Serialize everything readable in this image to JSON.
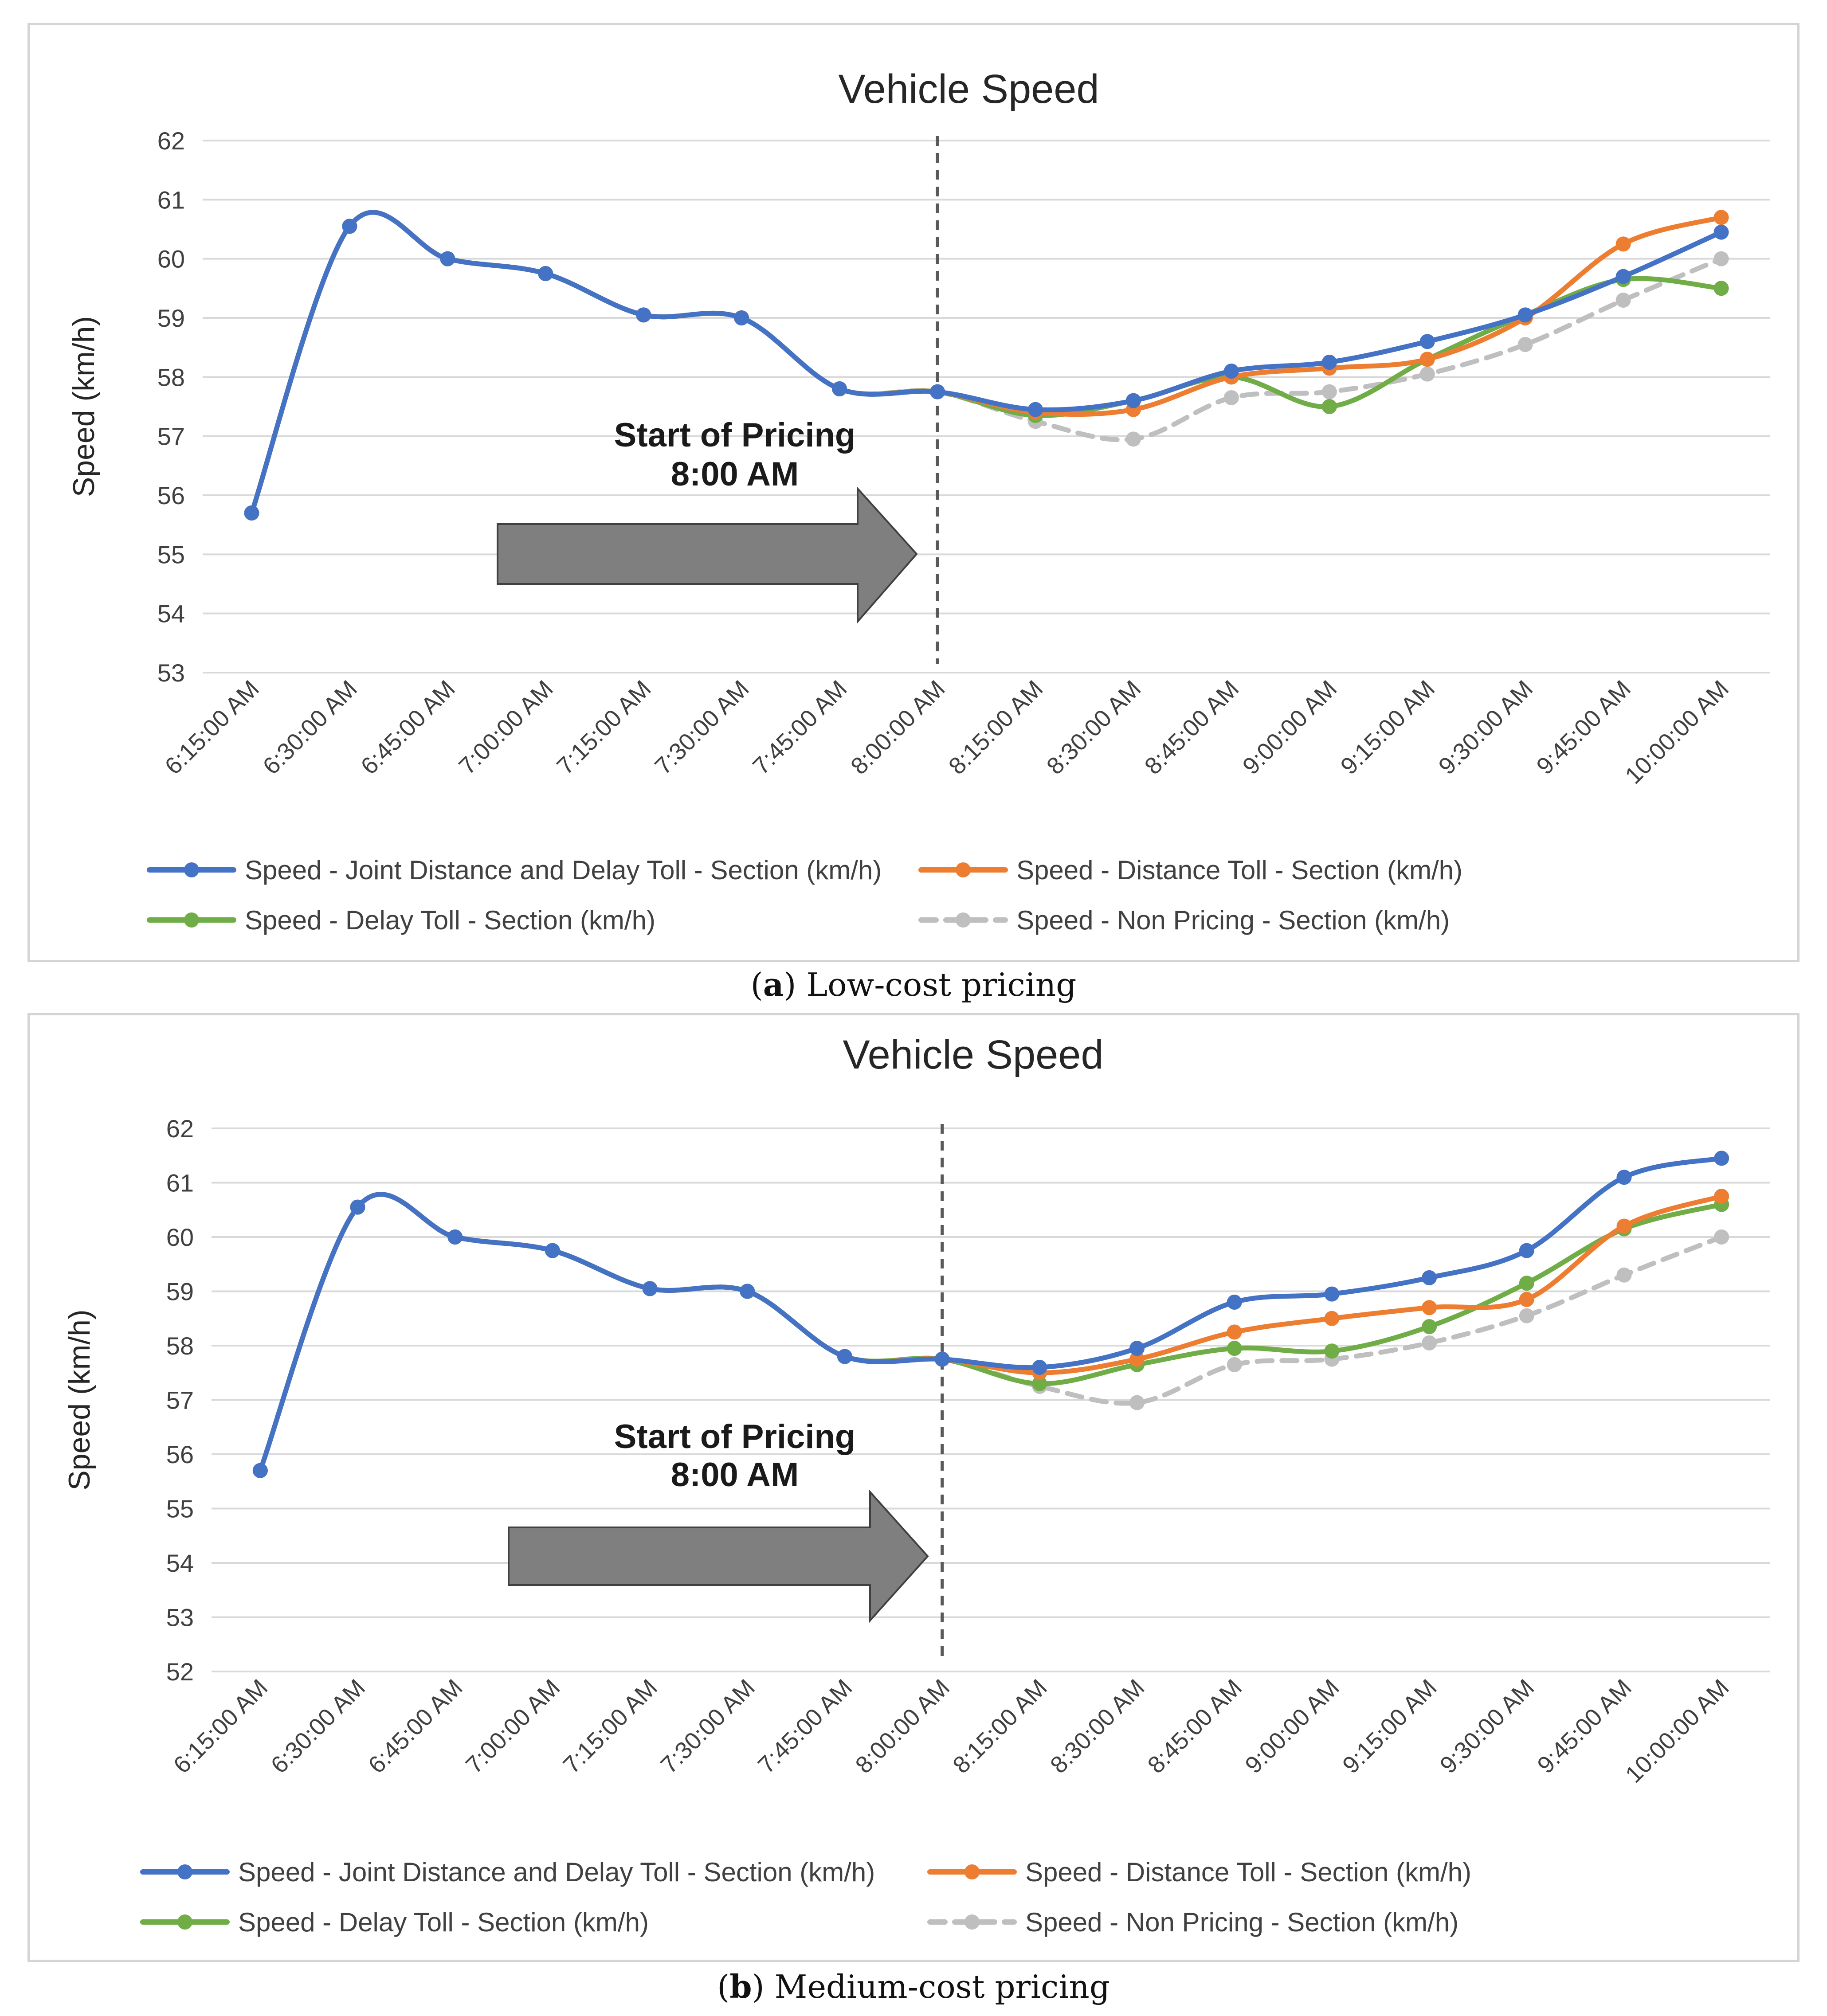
{
  "charts": [
    {
      "id": "a",
      "title": "Vehicle Speed",
      "ylabel": "Speed (km/h)",
      "annotation_line1": "Start of Pricing",
      "annotation_line2": "8:00 AM",
      "caption_letter": "a",
      "caption_text": " Low-cost pricing"
    },
    {
      "id": "b",
      "title": "Vehicle Speed",
      "ylabel": "Speed (km/h)",
      "annotation_line1": "Start of Pricing",
      "annotation_line2": "8:00 AM",
      "caption_letter": "b",
      "caption_text": " Medium-cost pricing"
    }
  ],
  "colors": {
    "joint": "#4472C4",
    "distance": "#ED7D31",
    "delay": "#70AD47",
    "nonpricing": "#BFBFBF",
    "grid": "#d9d9d9",
    "arrow_fill": "#7f7f7f"
  },
  "chart_data": [
    {
      "type": "line",
      "title": "Vehicle Speed",
      "xlabel": "",
      "ylabel": "Speed (km/h)",
      "ylim": [
        53,
        62
      ],
      "yticks": [
        53,
        54,
        55,
        56,
        57,
        58,
        59,
        60,
        61,
        62
      ],
      "grid": true,
      "legend": "bottom",
      "annotation": "Start of Pricing 8:00 AM",
      "vline_at": "8:00:00 AM",
      "categories": [
        "6:15:00 AM",
        "6:30:00 AM",
        "6:45:00 AM",
        "7:00:00 AM",
        "7:15:00 AM",
        "7:30:00 AM",
        "7:45:00 AM",
        "8:00:00 AM",
        "8:15:00 AM",
        "8:30:00 AM",
        "8:45:00 AM",
        "9:00:00 AM",
        "9:15:00 AM",
        "9:30:00 AM",
        "9:45:00 AM",
        "10:00:00 AM"
      ],
      "series": [
        {
          "name": "Speed - Joint Distance and Delay Toll - Section (km/h)",
          "key": "joint",
          "values": [
            55.7,
            60.55,
            60.0,
            59.75,
            59.05,
            59.0,
            57.8,
            57.75,
            57.45,
            57.6,
            58.1,
            58.25,
            58.6,
            59.05,
            59.7,
            60.45
          ]
        },
        {
          "name": "Speed - Distance Toll - Section (km/h)",
          "key": "distance",
          "values": [
            55.7,
            60.55,
            60.0,
            59.75,
            59.05,
            59.0,
            57.8,
            57.75,
            57.4,
            57.45,
            58.0,
            58.15,
            58.3,
            59.0,
            60.25,
            60.7
          ]
        },
        {
          "name": "Speed - Delay Toll - Section (km/h)",
          "key": "delay",
          "values": [
            55.7,
            60.55,
            60.0,
            59.75,
            59.05,
            59.0,
            57.8,
            57.75,
            57.35,
            57.6,
            58.0,
            57.5,
            58.3,
            59.05,
            59.65,
            59.5
          ]
        },
        {
          "name": "Speed - Non Pricing - Section (km/h)",
          "key": "nonpricing",
          "dashed": true,
          "values": [
            55.7,
            60.55,
            60.0,
            59.75,
            59.05,
            59.0,
            57.8,
            57.75,
            57.25,
            56.95,
            57.65,
            57.75,
            58.05,
            58.55,
            59.3,
            60.0
          ]
        }
      ]
    },
    {
      "type": "line",
      "title": "Vehicle Speed",
      "xlabel": "",
      "ylabel": "Speed (km/h)",
      "ylim": [
        52,
        62
      ],
      "yticks": [
        52,
        53,
        54,
        55,
        56,
        57,
        58,
        59,
        60,
        61,
        62
      ],
      "grid": true,
      "legend": "bottom",
      "annotation": "Start of Pricing 8:00 AM",
      "vline_at": "8:00:00 AM",
      "categories": [
        "6:15:00 AM",
        "6:30:00 AM",
        "6:45:00 AM",
        "7:00:00 AM",
        "7:15:00 AM",
        "7:30:00 AM",
        "7:45:00 AM",
        "8:00:00 AM",
        "8:15:00 AM",
        "8:30:00 AM",
        "8:45:00 AM",
        "9:00:00 AM",
        "9:15:00 AM",
        "9:30:00 AM",
        "9:45:00 AM",
        "10:00:00 AM"
      ],
      "series": [
        {
          "name": "Speed - Joint Distance and Delay Toll - Section (km/h)",
          "key": "joint",
          "values": [
            55.7,
            60.55,
            60.0,
            59.75,
            59.05,
            59.0,
            57.8,
            57.75,
            57.6,
            57.95,
            58.8,
            58.95,
            59.25,
            59.75,
            61.1,
            61.45
          ]
        },
        {
          "name": "Speed - Distance Toll - Section (km/h)",
          "key": "distance",
          "values": [
            55.7,
            60.55,
            60.0,
            59.75,
            59.05,
            59.0,
            57.8,
            57.75,
            57.5,
            57.75,
            58.25,
            58.5,
            58.7,
            58.85,
            60.2,
            60.75
          ]
        },
        {
          "name": "Speed - Delay Toll - Section (km/h)",
          "key": "delay",
          "values": [
            55.7,
            60.55,
            60.0,
            59.75,
            59.05,
            59.0,
            57.8,
            57.75,
            57.3,
            57.65,
            57.95,
            57.9,
            58.35,
            59.15,
            60.15,
            60.6
          ]
        },
        {
          "name": "Speed - Non Pricing - Section (km/h)",
          "key": "nonpricing",
          "dashed": true,
          "values": [
            55.7,
            60.55,
            60.0,
            59.75,
            59.05,
            59.0,
            57.8,
            57.75,
            57.25,
            56.95,
            57.65,
            57.75,
            58.05,
            58.55,
            59.3,
            60.0
          ]
        }
      ]
    }
  ]
}
